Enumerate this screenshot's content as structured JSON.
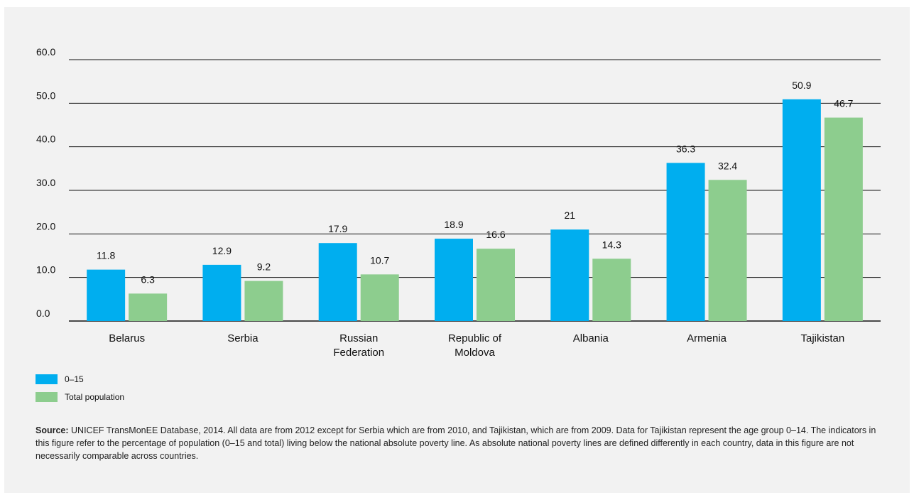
{
  "chart_data": {
    "type": "bar",
    "categories": [
      "Belarus",
      "Serbia",
      "Russian Federation",
      "Republic of Moldova",
      "Albania",
      "Armenia",
      "Tajikistan"
    ],
    "category_lines": [
      [
        "Belarus"
      ],
      [
        "Serbia"
      ],
      [
        "Russian",
        "Federation"
      ],
      [
        "Republic of",
        "Moldova"
      ],
      [
        "Albania"
      ],
      [
        "Armenia"
      ],
      [
        "Tajikistan"
      ]
    ],
    "series": [
      {
        "name": "0–15",
        "values": [
          11.8,
          12.9,
          17.9,
          18.9,
          21,
          36.3,
          50.9
        ],
        "labels": [
          "11.8",
          "12.9",
          "17.9",
          "18.9",
          "21",
          "36.3",
          "50.9"
        ],
        "color": "#00aeef"
      },
      {
        "name": "Total population",
        "values": [
          6.3,
          9.2,
          10.7,
          16.6,
          14.3,
          32.4,
          46.7
        ],
        "labels": [
          "6.3",
          "9.2",
          "10.7",
          "16.6",
          "14.3",
          "32.4",
          "46.7"
        ],
        "color": "#8dcd8e"
      }
    ],
    "yticks": [
      "0.0",
      "10.0",
      "20.0",
      "30.0",
      "40.0",
      "50.0",
      "60.0"
    ],
    "ylim": [
      0,
      60
    ],
    "grid": true,
    "legend_position": "bottom-left"
  },
  "source": {
    "label": "Source:",
    "text": "UNICEF TransMonEE Database, 2014. All data are from 2012 except for Serbia which are from 2010, and Tajikistan, which are from 2009. Data for Tajikistan represent the age group 0–14. The indicators in this figure refer to the percentage of population (0–15 and total) living below the national absolute poverty line. As absolute national poverty lines are defined differently in each country, data in this figure are not necessarily comparable across countries."
  }
}
